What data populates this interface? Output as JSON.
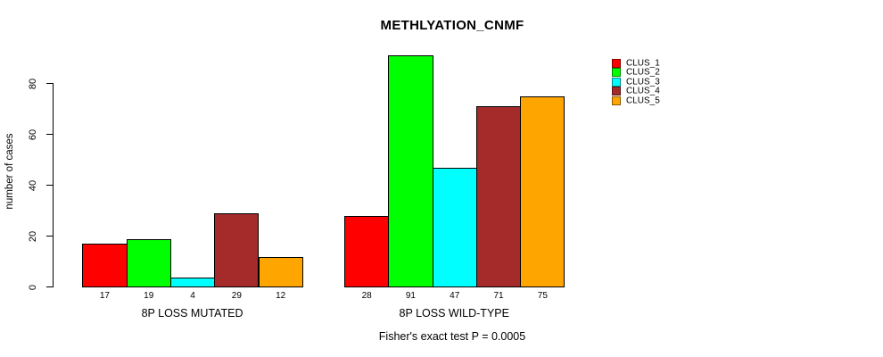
{
  "title": "METHLYATION_CNMF",
  "footer": "Fisher's exact test P = 0.0005",
  "chart_data": {
    "type": "bar",
    "title": "METHLYATION_CNMF",
    "xlabel": "",
    "ylabel": "number of cases",
    "ylim": [
      0,
      91
    ],
    "yticks": [
      0,
      20,
      40,
      60,
      80
    ],
    "grid": false,
    "legend_position": "top-right",
    "bar_border_color": "#000000",
    "series": [
      {
        "name": "CLUS_1",
        "color": "#FF0000"
      },
      {
        "name": "CLUS_2",
        "color": "#00FF00"
      },
      {
        "name": "CLUS_3",
        "color": "#00FFFF"
      },
      {
        "name": "CLUS_4",
        "color": "#A52A2A"
      },
      {
        "name": "CLUS_5",
        "color": "#FFA500"
      }
    ],
    "groups": [
      {
        "label": "8P LOSS MUTATED",
        "values": [
          17,
          19,
          4,
          29,
          12
        ]
      },
      {
        "label": "8P LOSS WILD-TYPE",
        "values": [
          28,
          91,
          47,
          71,
          75
        ]
      }
    ],
    "annotation": "Fisher's exact test P = 0.0005"
  }
}
